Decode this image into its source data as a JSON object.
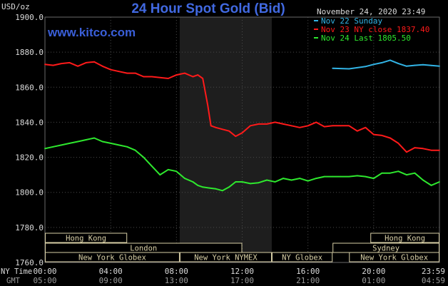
{
  "chart_data": {
    "type": "line",
    "title": "24 Hour Spot Gold (Bid)",
    "watermark": "www.kitco.com",
    "y_unit_label": "USD/oz",
    "timestamp": "November 24, 2020 23:49",
    "ylim": [
      1760,
      1900
    ],
    "y_ticks": [
      "1900.0",
      "1880.0",
      "1860.0",
      "1840.0",
      "1820.0",
      "1800.0",
      "1780.0",
      "1760.0"
    ],
    "x_range_hours": [
      0,
      24
    ],
    "x_ticks_ny": [
      "00:00",
      "04:00",
      "08:00",
      "12:00",
      "16:00",
      "20:00",
      "23:59"
    ],
    "x_ticks_gmt": [
      "05:00",
      "09:00",
      "13:00",
      "17:00",
      "21:00",
      "01:00",
      "04:59"
    ],
    "x_row_labels": {
      "ny": "NY Time",
      "gmt": "GMT"
    },
    "highlight_band_hours": [
      8.2,
      13.8
    ],
    "colors": {
      "background": "#000000",
      "grid": "#4a4a4a",
      "band": "#1e1e1e",
      "title": "#4169e1",
      "watermark": "#3a5fd9",
      "axis_text": "#dcdcdc",
      "market_box": "#d8cfa6",
      "series_blue": "#32b4e6",
      "series_red": "#ff1a1a",
      "series_green": "#2ee82e"
    },
    "legend": [
      {
        "text": "Nov 22 Sunday",
        "color": "#32b4e6"
      },
      {
        "text": "Nov 23 NY close 1837.40",
        "color": "#ff1a1a"
      },
      {
        "text": "Nov 24 Last 1805.50",
        "color": "#2ee82e"
      }
    ],
    "series": [
      {
        "name": "Nov 22 Sunday",
        "color": "#32b4e6",
        "x": [
          17.5,
          18.5,
          19.5,
          20.0,
          20.5,
          21.0,
          21.5,
          22.0,
          22.5,
          23.0,
          23.5,
          24.0
        ],
        "y": [
          1870.8,
          1870.5,
          1871.8,
          1873.0,
          1874.0,
          1875.4,
          1873.5,
          1872.0,
          1872.5,
          1872.8,
          1872.4,
          1872.0
        ]
      },
      {
        "name": "Nov 23 NY close 1837.40",
        "color": "#ff1a1a",
        "x": [
          0,
          0.5,
          1.0,
          1.5,
          2.0,
          2.5,
          3.0,
          3.5,
          4.0,
          4.5,
          5.0,
          5.5,
          6.0,
          6.5,
          7.0,
          7.5,
          8.0,
          8.5,
          9.0,
          9.3,
          9.6,
          9.9,
          10.1,
          10.4,
          10.8,
          11.2,
          11.6,
          12.0,
          12.5,
          13.0,
          13.5,
          14.0,
          14.5,
          15.0,
          15.5,
          16.0,
          16.5,
          17.0,
          17.5,
          18.0,
          18.5,
          19.0,
          19.5,
          20.0,
          20.5,
          21.0,
          21.5,
          22.0,
          22.5,
          23.0,
          23.5,
          24.0
        ],
        "y": [
          1873,
          1872.5,
          1873.5,
          1874,
          1872,
          1874,
          1874.5,
          1872,
          1870,
          1869,
          1868,
          1868,
          1866,
          1866,
          1865.5,
          1865,
          1867,
          1868,
          1866,
          1867,
          1865,
          1850,
          1838,
          1837,
          1836,
          1835,
          1832,
          1834,
          1838,
          1839,
          1839,
          1840,
          1839,
          1838,
          1837,
          1838,
          1840,
          1837.5,
          1838,
          1838,
          1838,
          1835,
          1837,
          1833,
          1832.5,
          1831,
          1828,
          1823,
          1825.5,
          1825,
          1824,
          1824
        ]
      },
      {
        "name": "Nov 24 Last 1805.50",
        "color": "#2ee82e",
        "x": [
          0,
          0.5,
          1.0,
          1.5,
          2.0,
          2.5,
          3.0,
          3.5,
          4.0,
          4.5,
          5.0,
          5.5,
          6.0,
          6.5,
          7.0,
          7.5,
          8.0,
          8.5,
          9.0,
          9.3,
          9.6,
          10.0,
          10.4,
          10.8,
          11.2,
          11.6,
          12.0,
          12.5,
          13.0,
          13.5,
          14.0,
          14.5,
          15.0,
          15.5,
          16.0,
          16.5,
          17.0,
          17.5,
          18.0,
          18.5,
          19.0,
          19.5,
          20.0,
          20.5,
          21.0,
          21.5,
          22.0,
          22.5,
          23.0,
          23.5,
          24.0
        ],
        "y": [
          1825,
          1826,
          1827,
          1828,
          1829,
          1830,
          1831,
          1829,
          1828,
          1827,
          1826,
          1824,
          1820,
          1815,
          1810,
          1813,
          1812,
          1808,
          1806,
          1804,
          1803,
          1802.5,
          1802,
          1801,
          1803,
          1806,
          1806,
          1805,
          1805.5,
          1807,
          1806,
          1808,
          1807,
          1808,
          1806.5,
          1808,
          1809,
          1809,
          1809,
          1809,
          1809.5,
          1809,
          1808,
          1811,
          1811,
          1812,
          1810,
          1811,
          1807,
          1804,
          1806
        ]
      }
    ],
    "markets": [
      {
        "label": "Hong Kong",
        "start": 0,
        "end": 5,
        "row": 0
      },
      {
        "label": "London",
        "start": 0,
        "end": 12,
        "row": 1
      },
      {
        "label": "New York Globex",
        "start": 0,
        "end": 8.2,
        "row": 2
      },
      {
        "label": "New York NYMEX",
        "start": 8.2,
        "end": 13.8,
        "row": 2
      },
      {
        "label": "NY Globex",
        "start": 13.8,
        "end": 17.5,
        "row": 2
      },
      {
        "label": "Sydney",
        "start": 17.5,
        "end": 24,
        "row": 1
      },
      {
        "label": "Hong Kong",
        "start": 19.8,
        "end": 24,
        "row": 0
      },
      {
        "label": "New York Globex",
        "start": 18.5,
        "end": 24,
        "row": 2
      }
    ]
  }
}
